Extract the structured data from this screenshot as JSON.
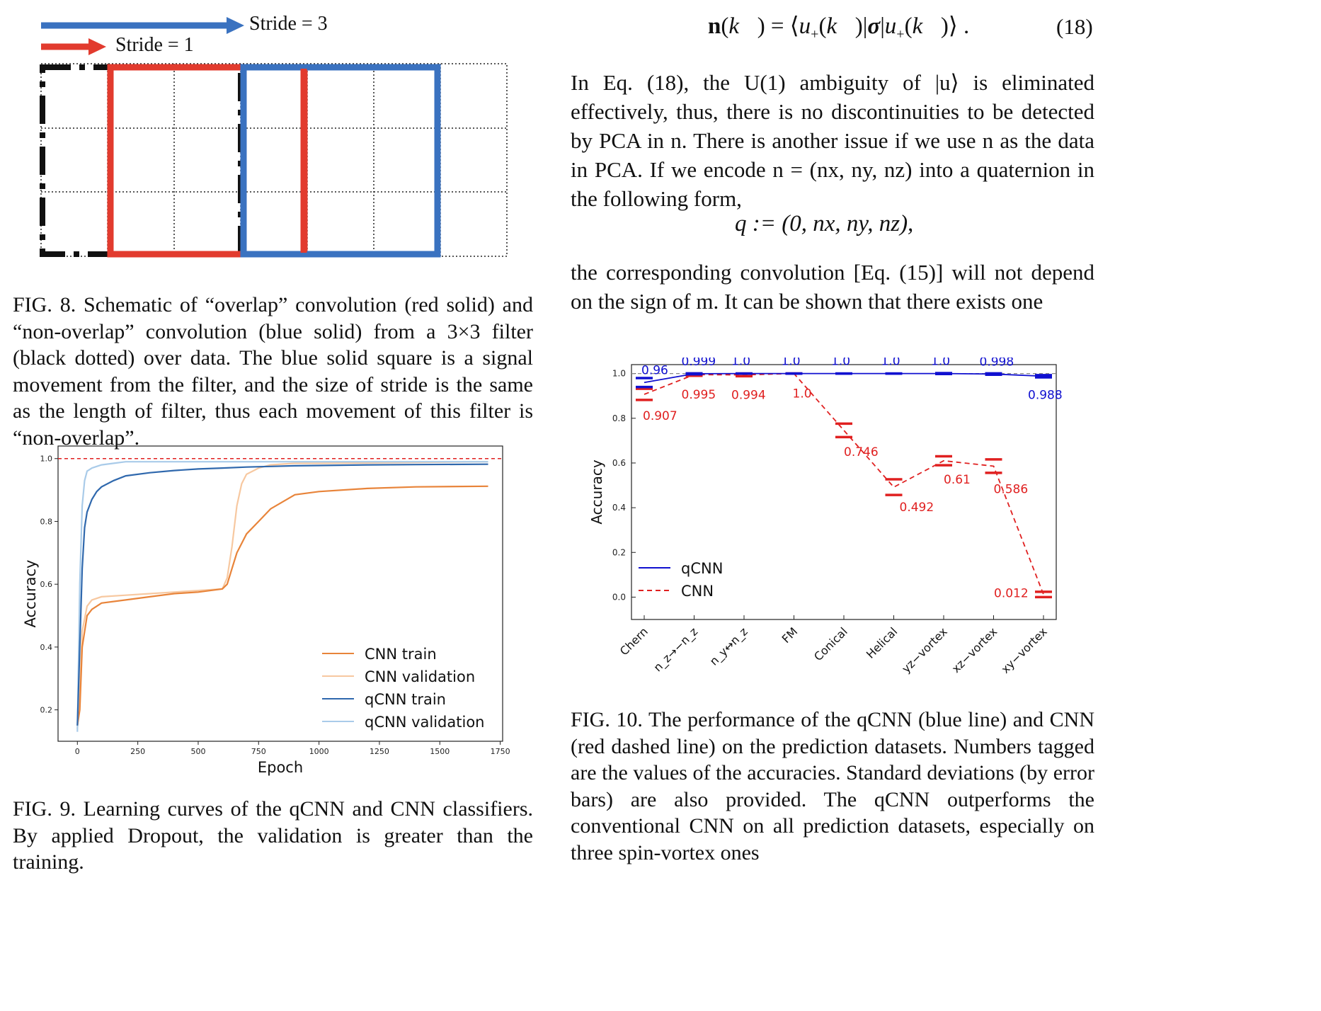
{
  "fig8": {
    "stride3_label": "Stride = 3",
    "stride1_label": "Stride = 1",
    "caption": "FIG. 8. Schematic of “overlap” convolution (red solid) and “non-overlap” convolution (blue solid) from a 3×3 filter (black dotted) over data. The blue solid square is a signal movement from the filter, and the size of stride is the same as the length of filter, thus each movement of this filter is “non-overlap”.",
    "colors": {
      "red": "#e23b2e",
      "blue": "#3a72c0",
      "black": "#111111"
    }
  },
  "equation18": {
    "text": "n(k⃗) = ⟨u₊(k⃗)|σ|u₊(k⃗)⟩ .",
    "number": "(18)"
  },
  "paragraph1": "In Eq. (18), the U(1) ambiguity of |u⟩ is eliminated effectively, thus, there is no discontinuities to be detected by PCA in n. There is another issue if we use n as the data in PCA. If we encode n = (nx, ny, nz) into a quaternion in the following form,",
  "equation_q": "q := (0,  nx,  ny,  nz),",
  "paragraph2": "the corresponding convolution [Eq. (15)] will not depend on the sign of m. It can be shown that there exists one",
  "fig9": {
    "caption": "FIG. 9. Learning curves of the qCNN and CNN classifiers. By applied Dropout, the validation is greater than the training.",
    "chart_data": {
      "type": "line",
      "xlabel": "Epoch",
      "ylabel": "Accuracy",
      "xlim": [
        -80,
        1760
      ],
      "ylim": [
        0.1,
        1.04
      ],
      "xticks": [
        "0",
        "250",
        "500",
        "750",
        "1000",
        "1250",
        "1500",
        "1750"
      ],
      "yticks": [
        "0.2",
        "0.4",
        "0.6",
        "0.8",
        "1.0"
      ],
      "reference_line": 1.0,
      "legend_position": "lower-right",
      "series": [
        {
          "name": "CNN train",
          "color": "#e8843a",
          "x": [
            0,
            10,
            20,
            40,
            60,
            100,
            200,
            300,
            400,
            500,
            600,
            620,
            640,
            660,
            680,
            700,
            750,
            800,
            900,
            1000,
            1200,
            1400,
            1700
          ],
          "y": [
            0.15,
            0.2,
            0.4,
            0.5,
            0.52,
            0.54,
            0.55,
            0.56,
            0.57,
            0.575,
            0.585,
            0.6,
            0.65,
            0.7,
            0.73,
            0.76,
            0.8,
            0.84,
            0.885,
            0.895,
            0.905,
            0.91,
            0.912
          ]
        },
        {
          "name": "CNN validation",
          "color": "#f7c8a0",
          "x": [
            0,
            10,
            20,
            40,
            60,
            100,
            200,
            300,
            400,
            500,
            600,
            620,
            640,
            660,
            680,
            700,
            750,
            800,
            900,
            1000,
            1700
          ],
          "y": [
            0.14,
            0.25,
            0.45,
            0.53,
            0.55,
            0.56,
            0.565,
            0.57,
            0.575,
            0.58,
            0.585,
            0.62,
            0.72,
            0.85,
            0.92,
            0.95,
            0.97,
            0.98,
            0.985,
            0.985,
            0.99
          ]
        },
        {
          "name": "qCNN train",
          "color": "#2f68ad",
          "x": [
            0,
            10,
            20,
            30,
            40,
            60,
            80,
            100,
            150,
            200,
            300,
            400,
            500,
            600,
            700,
            800,
            900,
            1000,
            1200,
            1400,
            1700
          ],
          "y": [
            0.15,
            0.4,
            0.65,
            0.78,
            0.83,
            0.87,
            0.895,
            0.91,
            0.93,
            0.945,
            0.955,
            0.962,
            0.967,
            0.97,
            0.973,
            0.975,
            0.977,
            0.978,
            0.98,
            0.981,
            0.982
          ]
        },
        {
          "name": "qCNN validation",
          "color": "#a9cbe9",
          "x": [
            0,
            10,
            20,
            30,
            40,
            60,
            80,
            100,
            150,
            200,
            300,
            500,
            700,
            900,
            1200,
            1700
          ],
          "y": [
            0.13,
            0.6,
            0.85,
            0.93,
            0.96,
            0.97,
            0.975,
            0.98,
            0.985,
            0.99,
            0.99,
            0.99,
            0.99,
            0.99,
            0.99,
            0.99
          ]
        }
      ]
    }
  },
  "fig10": {
    "caption": "FIG. 10. The performance of the qCNN (blue line) and CNN (red dashed line) on the prediction datasets. Numbers tagged are the values of the accuracies. Standard deviations (by error bars) are also provided. The qCNN outperforms the conventional CNN on all prediction datasets, especially on three spin-vortex ones",
    "chart_data": {
      "type": "line",
      "ylabel": "Accuracy",
      "ylim": [
        -0.1,
        1.04
      ],
      "yticks": [
        "0.0",
        "0.2",
        "0.4",
        "0.6",
        "0.8",
        "1.0"
      ],
      "reference_line": 1.0,
      "legend_position": "lower-left",
      "categories": [
        "Chern",
        "n_z→−n_z",
        "n_y↔n_z",
        "FM",
        "Conical",
        "Helical",
        "yz−vortex",
        "xz−vortex",
        "xy−vortex"
      ],
      "series": [
        {
          "name": "qCNN",
          "color": "#1010d0",
          "style": "solid",
          "values": [
            0.96,
            0.999,
            1.0,
            1.0,
            1.0,
            1.0,
            1.0,
            0.998,
            0.988
          ],
          "labels": [
            "0.96",
            "0.999",
            "1.0",
            "1.0",
            "1.0",
            "1.0",
            "1.0",
            "0.998",
            "0.988"
          ],
          "std": [
            0.02,
            0.002,
            0.0,
            0.0,
            0.0,
            0.0,
            0.002,
            0.003,
            0.005
          ]
        },
        {
          "name": "CNN",
          "color": "#e02020",
          "style": "dashed",
          "values": [
            0.907,
            0.995,
            0.994,
            1.0,
            0.746,
            0.492,
            0.61,
            0.586,
            0.012
          ],
          "labels": [
            "0.907",
            "0.995",
            "0.994",
            "1.0",
            "0.746",
            "0.492",
            "0.61",
            "0.586",
            "0.012"
          ],
          "std": [
            0.025,
            0.005,
            0.006,
            0.0,
            0.03,
            0.035,
            0.02,
            0.03,
            0.012
          ]
        }
      ]
    }
  }
}
